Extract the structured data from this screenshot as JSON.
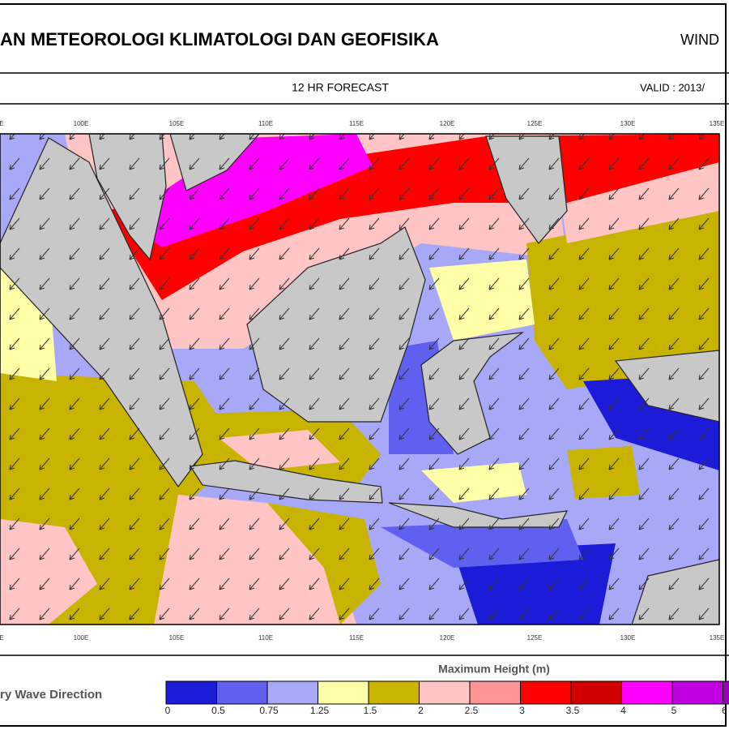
{
  "header": {
    "title": "AN METEOROLOGI KLIMATOLOGI DAN GEOFISIKA",
    "right": "WIND"
  },
  "subheader": {
    "forecast": "12  HR FORECAST",
    "valid": "VALID :  2013/"
  },
  "map": {
    "longitude_labels": [
      "E",
      "100E",
      "105E",
      "110E",
      "115E",
      "120E",
      "125E",
      "130E",
      "135E"
    ]
  },
  "legend": {
    "direction_label": "ry Wave Direction",
    "title": "Maximum Height (m)",
    "ticks": [
      0,
      0.5,
      0.75,
      1.25,
      1.5,
      2,
      2.5,
      3,
      3.5,
      4,
      5,
      6
    ],
    "colors": [
      "#1c1cd8",
      "#6060f0",
      "#a8a8f8",
      "#ffffa8",
      "#c8b400",
      "#ffc4c4",
      "#ff9494",
      "#ff0000",
      "#d00000",
      "#ff00ff",
      "#c000e0",
      "#9a00b8"
    ]
  }
}
